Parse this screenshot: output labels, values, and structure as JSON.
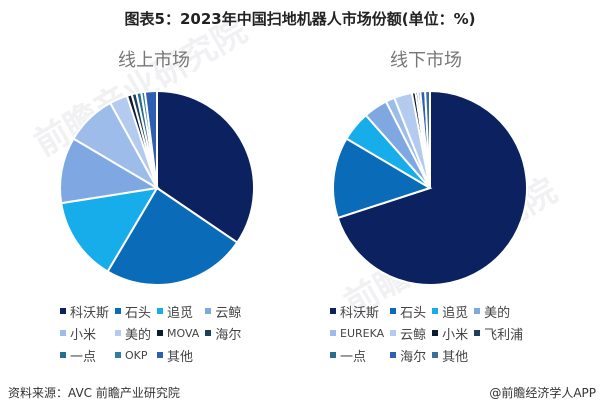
{
  "title": "图表5：2023年中国扫地机器人市场份额(单位：%)",
  "source": "资料来源：AVC 前瞻产业研究院",
  "credit": "@前瞻经济学人APP",
  "watermark": "前瞻产业研究院",
  "charts": {
    "online": {
      "label": "线上市场"
    },
    "offline": {
      "label": "线下市场"
    }
  },
  "chart_data": [
    {
      "type": "pie",
      "title": "线上市场",
      "categories": [
        "科沃斯",
        "石头",
        "追觅",
        "云鲸",
        "小米",
        "美的",
        "MOVA",
        "海尔",
        "一点",
        "OKP",
        "其他"
      ],
      "values": [
        34.5,
        24.0,
        14.0,
        11.0,
        8.5,
        3.0,
        0.8,
        0.8,
        0.8,
        0.6,
        2.0
      ],
      "colors": [
        "#0b2160",
        "#0a6bb8",
        "#17adeb",
        "#7fa8e3",
        "#9dbcea",
        "#b3cbee",
        "#0d1b2e",
        "#1d3f5c",
        "#2a6e8c",
        "#2f7ea0",
        "#2e5fb3"
      ],
      "legend_position": "bottom"
    },
    {
      "type": "pie",
      "title": "线下市场",
      "categories": [
        "科沃斯",
        "石头",
        "追觅",
        "美的",
        "EUREKA",
        "云鲸",
        "小米",
        "飞利浦",
        "一点",
        "海尔",
        "其他"
      ],
      "values": [
        70.0,
        13.5,
        5.0,
        4.0,
        1.5,
        3.0,
        0.6,
        0.4,
        0.4,
        0.8,
        0.8
      ],
      "colors": [
        "#0b2160",
        "#0a6bb8",
        "#17adeb",
        "#7fa8e3",
        "#9dbcea",
        "#b3cbee",
        "#0d1b2e",
        "#1d3f5c",
        "#2a6e8c",
        "#2e5fb3",
        "#3a6f9a"
      ],
      "legend_position": "bottom"
    }
  ]
}
